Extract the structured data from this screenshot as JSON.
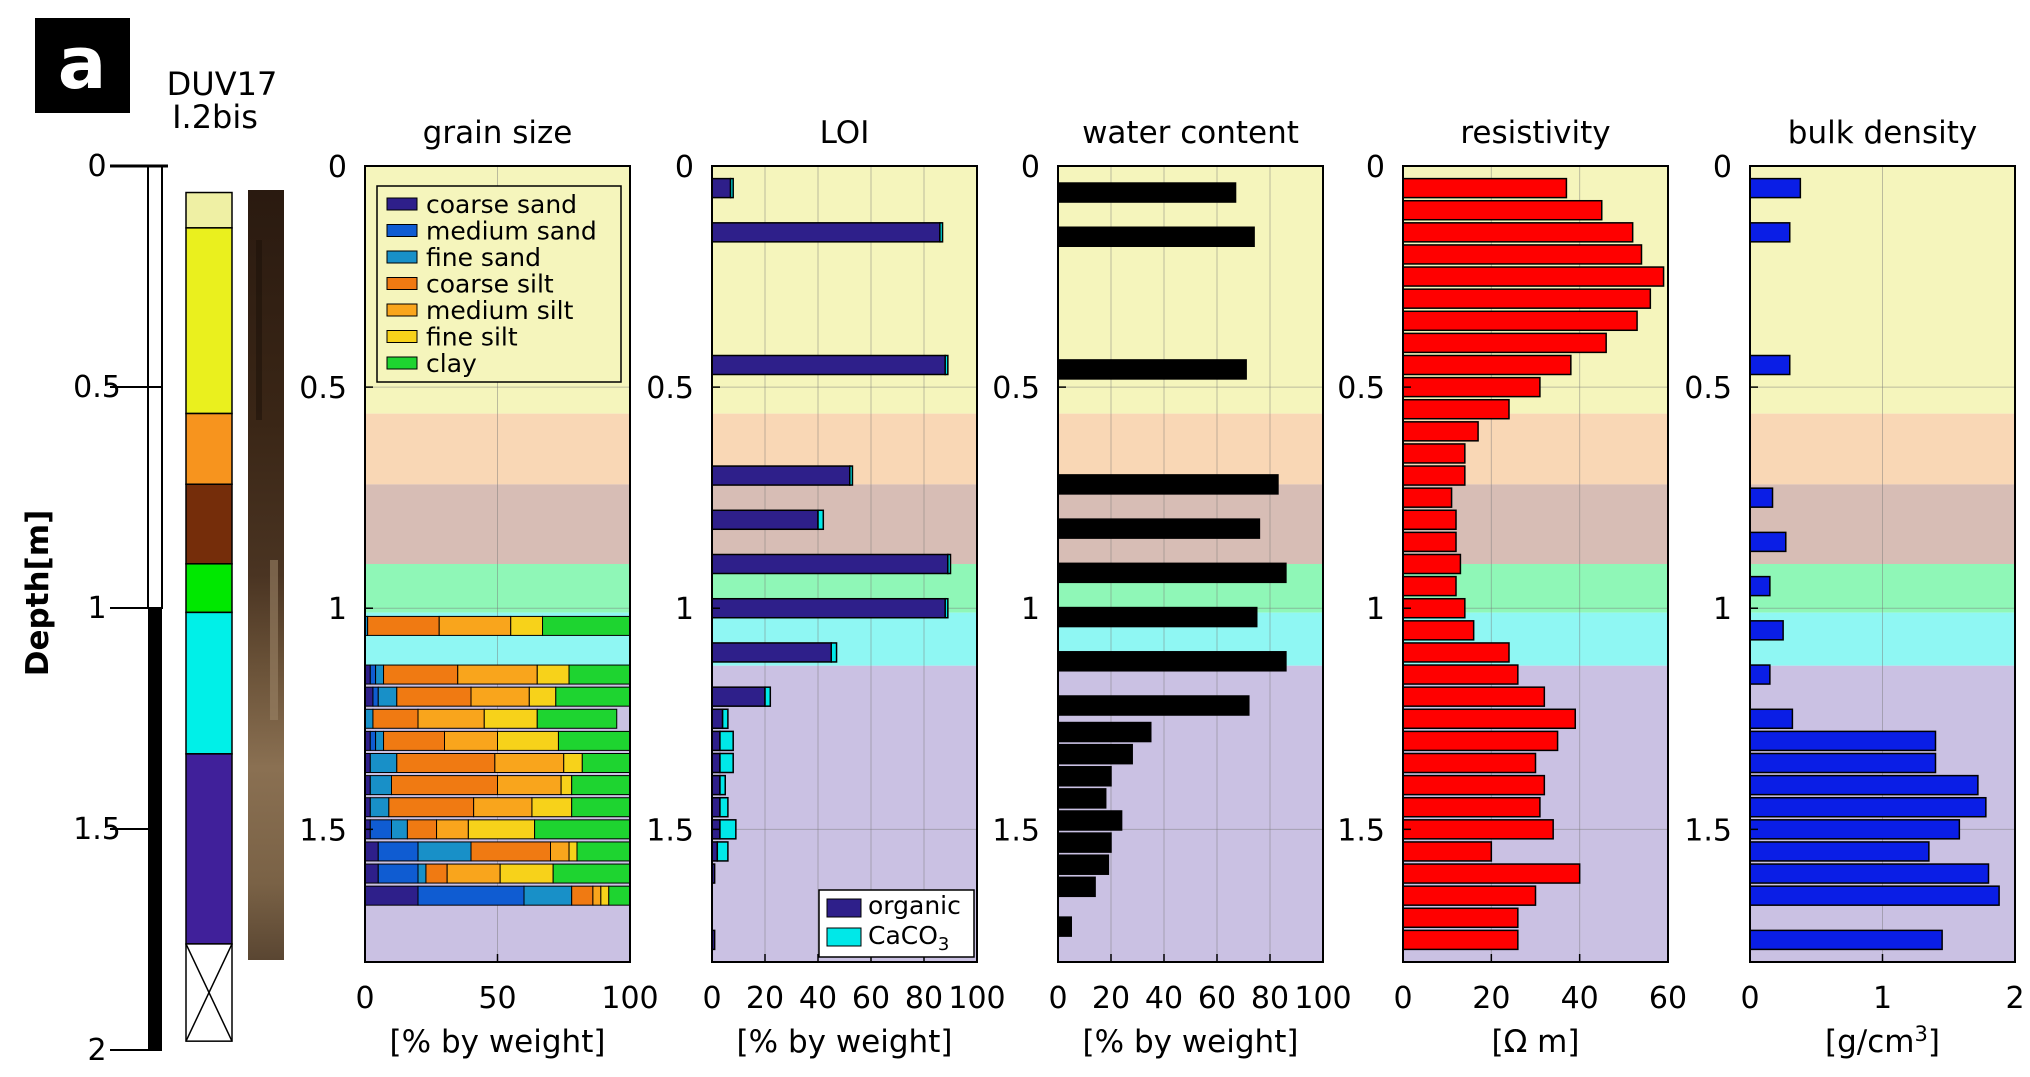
{
  "panel_label": "a",
  "core": {
    "name": "DUV17",
    "sub": "I.2bis"
  },
  "depth_axis": {
    "label": "Depth[m]",
    "ticks": [
      "0",
      "0.5",
      "1",
      "1.5",
      "2"
    ]
  },
  "colors": {
    "units": [
      "#eff0a4",
      "#eaf01e",
      "#f7941e",
      "#752d0a",
      "#00e800",
      "#00f0e8",
      "#40209a"
    ],
    "unit_bg": [
      "#f5f5bc",
      "#f9d7b5",
      "#d7bdb5",
      "#8ff7b7",
      "#8ff7f3",
      "#cac1e3"
    ],
    "grain": [
      "#2e1f8a",
      "#0f5cd2",
      "#1890c8",
      "#f07a12",
      "#f9a51c",
      "#f7d21a",
      "#1ed430"
    ],
    "organic": "#2e1f8a",
    "caco3": "#00e8e8",
    "water": "#000000",
    "resistivity": "#ff0000",
    "bulk_density": "#0a1ee6"
  },
  "chart_data": [
    {
      "type": "bar",
      "orientation": "horizontal-stacked",
      "title": "grain size",
      "xlabel": "[% by weight]",
      "xlim": [
        0,
        100
      ],
      "xticks": [
        "0",
        "50",
        "100"
      ],
      "ylim": [
        0,
        1.8
      ],
      "yticks": [
        "0",
        "0.5",
        "1",
        "1.5"
      ],
      "components": [
        "coarse sand",
        "medium sand",
        "fine sand",
        "coarse silt",
        "medium silt",
        "fine silt",
        "clay"
      ],
      "depth": [
        1.04,
        1.15,
        1.2,
        1.25,
        1.3,
        1.35,
        1.4,
        1.45,
        1.5,
        1.55,
        1.6,
        1.65
      ],
      "values": [
        [
          0,
          0,
          1,
          27,
          27,
          12,
          33
        ],
        [
          2,
          2,
          3,
          28,
          30,
          12,
          23
        ],
        [
          3,
          2,
          7,
          28,
          22,
          10,
          28
        ],
        [
          0,
          0,
          3,
          17,
          25,
          20,
          30
        ],
        [
          2,
          2,
          3,
          23,
          20,
          23,
          27
        ],
        [
          2,
          0,
          10,
          37,
          26,
          7,
          18
        ],
        [
          2,
          0,
          8,
          40,
          24,
          4,
          22
        ],
        [
          2,
          0,
          7,
          32,
          22,
          15,
          22
        ],
        [
          2,
          8,
          6,
          11,
          12,
          25,
          36
        ],
        [
          5,
          15,
          20,
          30,
          7,
          3,
          20
        ],
        [
          5,
          15,
          3,
          8,
          20,
          20,
          29
        ],
        [
          20,
          40,
          18,
          8,
          3,
          3,
          8
        ]
      ],
      "legend": "top-left"
    },
    {
      "type": "bar",
      "orientation": "horizontal-stacked",
      "title": "LOI",
      "xlabel": "[% by weight]",
      "xlim": [
        0,
        100
      ],
      "xticks": [
        "0",
        "20",
        "40",
        "60",
        "80",
        "100"
      ],
      "ylim": [
        0,
        1.8
      ],
      "yticks": [
        "0",
        "0.5",
        "1",
        "1.5"
      ],
      "depth": [
        0.05,
        0.15,
        0.45,
        0.7,
        0.8,
        0.9,
        1.0,
        1.1,
        1.2,
        1.25,
        1.3,
        1.35,
        1.4,
        1.45,
        1.5,
        1.55,
        1.6,
        1.75
      ],
      "series": [
        {
          "name": "organic",
          "values": [
            7,
            86,
            88,
            52,
            40,
            89,
            88,
            45,
            20,
            4,
            3,
            3,
            3,
            3,
            3,
            2,
            1,
            1
          ]
        },
        {
          "name": "CaCO3",
          "values": [
            1,
            1,
            1,
            1,
            2,
            1,
            1,
            2,
            2,
            2,
            5,
            5,
            2,
            3,
            6,
            4,
            0,
            0
          ]
        }
      ],
      "legend": "bottom-right"
    },
    {
      "type": "bar",
      "orientation": "horizontal",
      "title": "water content",
      "xlabel": "[% by weight]",
      "xlim": [
        0,
        100
      ],
      "xticks": [
        "0",
        "20",
        "40",
        "60",
        "80",
        "100"
      ],
      "ylim": [
        0,
        1.8
      ],
      "yticks": [
        "0",
        "0.5",
        "1",
        "1.5"
      ],
      "depth": [
        0.06,
        0.16,
        0.46,
        0.72,
        0.82,
        0.92,
        1.02,
        1.12,
        1.22,
        1.28,
        1.33,
        1.38,
        1.43,
        1.48,
        1.53,
        1.58,
        1.63,
        1.72
      ],
      "values": [
        67,
        74,
        71,
        83,
        76,
        86,
        75,
        86,
        72,
        35,
        28,
        20,
        18,
        24,
        20,
        19,
        14,
        5
      ]
    },
    {
      "type": "bar",
      "orientation": "horizontal",
      "title": "resistivity",
      "xlabel": "[Ω m]",
      "xlim": [
        0,
        60
      ],
      "xticks": [
        "0",
        "20",
        "40",
        "60"
      ],
      "ylim": [
        0,
        1.8
      ],
      "yticks": [
        "0",
        "0.5",
        "1",
        "1.5"
      ],
      "depth": [
        0.05,
        0.1,
        0.15,
        0.2,
        0.25,
        0.3,
        0.35,
        0.4,
        0.45,
        0.5,
        0.55,
        0.6,
        0.65,
        0.7,
        0.75,
        0.8,
        0.85,
        0.9,
        0.95,
        1.0,
        1.05,
        1.1,
        1.15,
        1.2,
        1.25,
        1.3,
        1.35,
        1.4,
        1.45,
        1.5,
        1.55,
        1.6,
        1.65,
        1.7,
        1.75
      ],
      "values": [
        37,
        45,
        52,
        54,
        59,
        56,
        53,
        46,
        38,
        31,
        24,
        17,
        14,
        14,
        11,
        12,
        12,
        13,
        12,
        14,
        16,
        24,
        26,
        32,
        39,
        35,
        30,
        32,
        31,
        34,
        20,
        40,
        30,
        26,
        26
      ]
    },
    {
      "type": "bar",
      "orientation": "horizontal",
      "title": "bulk density",
      "xlabel": "[g/cm3]",
      "xlim": [
        0,
        2
      ],
      "xticks": [
        "0",
        "1",
        "2"
      ],
      "ylim": [
        0,
        1.8
      ],
      "yticks": [
        "0",
        "0.5",
        "1",
        "1.5"
      ],
      "depth": [
        0.05,
        0.15,
        0.45,
        0.75,
        0.85,
        0.95,
        1.05,
        1.15,
        1.25,
        1.3,
        1.35,
        1.4,
        1.45,
        1.5,
        1.55,
        1.6,
        1.65,
        1.75
      ],
      "values": [
        0.38,
        0.3,
        0.3,
        0.17,
        0.27,
        0.15,
        0.25,
        0.15,
        0.32,
        1.4,
        1.4,
        1.72,
        1.78,
        1.58,
        1.35,
        1.8,
        1.88,
        1.45
      ]
    }
  ]
}
